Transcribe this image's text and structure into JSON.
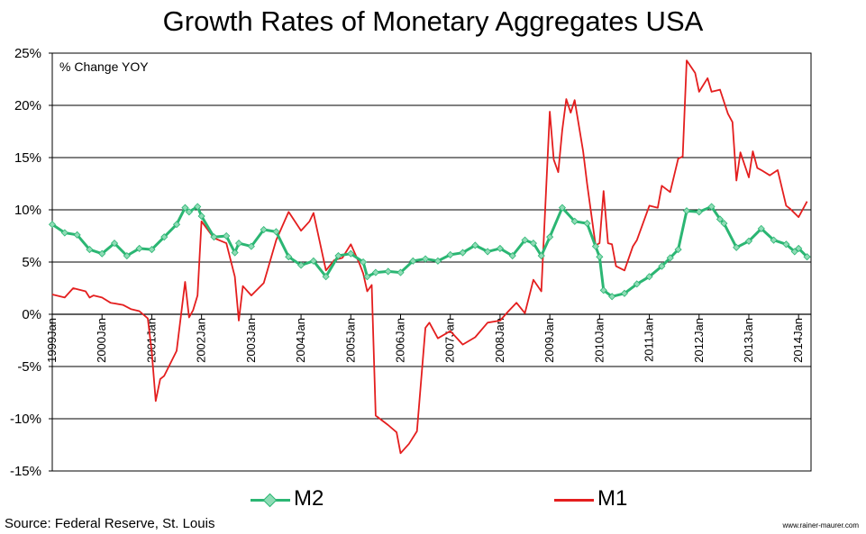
{
  "title": "Growth Rates of Monetary Aggregates  USA",
  "annotation": "% Change YOY",
  "source": "Source:  Federal Reserve,  St. Louis",
  "watermark": "www.rainer-maurer.com",
  "chart_data": {
    "type": "line",
    "title": "Growth Rates of Monetary Aggregates  USA",
    "ylim": [
      -15,
      25
    ],
    "y_ticks": [
      "25%",
      "20%",
      "15%",
      "10%",
      "5%",
      "0%",
      "-5%",
      "-10%",
      "-15%"
    ],
    "y_tick_values": [
      25,
      20,
      15,
      10,
      5,
      0,
      -5,
      -10,
      -15
    ],
    "x_tick_labels": [
      "1999Jan",
      "2000Jan",
      "2001Jan",
      "2002Jan",
      "2003Jan",
      "2004Jan",
      "2005Jan",
      "2006Jan",
      "2007Jan",
      "2008Jan",
      "2009Jan",
      "2010Jan",
      "2011Jan",
      "2012Jan",
      "2013Jan",
      "2014Jan"
    ],
    "x_tick_years": [
      1999,
      2000,
      2001,
      2002,
      2003,
      2004,
      2005,
      2006,
      2007,
      2008,
      2009,
      2010,
      2011,
      2012,
      2013,
      2014
    ],
    "xlim": [
      1999.0,
      2014.25
    ],
    "grid": "horizontal",
    "legend": "bottom",
    "series": [
      {
        "name": "M2",
        "color": "#2bb673",
        "marker": "diamond",
        "x": [
          1999.0,
          1999.25,
          1999.5,
          1999.75,
          2000.0,
          2000.25,
          2000.5,
          2000.75,
          2001.0,
          2001.25,
          2001.5,
          2001.67,
          2001.75,
          2001.92,
          2002.0,
          2002.25,
          2002.5,
          2002.67,
          2002.75,
          2003.0,
          2003.25,
          2003.5,
          2003.75,
          2004.0,
          2004.25,
          2004.5,
          2004.75,
          2005.0,
          2005.25,
          2005.33,
          2005.5,
          2005.75,
          2006.0,
          2006.25,
          2006.5,
          2006.75,
          2007.0,
          2007.25,
          2007.5,
          2007.75,
          2008.0,
          2008.25,
          2008.5,
          2008.67,
          2008.83,
          2009.0,
          2009.25,
          2009.5,
          2009.75,
          2009.92,
          2010.0,
          2010.08,
          2010.25,
          2010.5,
          2010.75,
          2011.0,
          2011.25,
          2011.42,
          2011.58,
          2011.75,
          2012.0,
          2012.25,
          2012.42,
          2012.5,
          2012.75,
          2013.0,
          2013.25,
          2013.5,
          2013.75,
          2013.92,
          2014.0,
          2014.17
        ],
        "values": [
          8.6,
          7.8,
          7.6,
          6.2,
          5.8,
          6.8,
          5.6,
          6.3,
          6.2,
          7.4,
          8.6,
          10.2,
          9.8,
          10.3,
          9.4,
          7.4,
          7.5,
          5.9,
          6.8,
          6.5,
          8.1,
          7.9,
          5.5,
          4.7,
          5.1,
          3.6,
          5.6,
          5.8,
          5.0,
          3.6,
          4.0,
          4.1,
          4.0,
          5.1,
          5.3,
          5.1,
          5.7,
          5.9,
          6.6,
          6.0,
          6.3,
          5.6,
          7.1,
          6.8,
          5.6,
          7.4,
          10.2,
          8.9,
          8.7,
          6.5,
          5.5,
          2.3,
          1.7,
          2.0,
          2.9,
          3.6,
          4.6,
          5.4,
          6.2,
          9.9,
          9.8,
          10.3,
          9.1,
          8.7,
          6.4,
          7.0,
          8.2,
          7.1,
          6.7,
          6.0,
          6.3,
          5.5
        ]
      },
      {
        "name": "M1",
        "color": "#e41e1e",
        "marker": "none",
        "x": [
          1999.0,
          1999.25,
          1999.42,
          1999.67,
          1999.75,
          1999.83,
          2000.0,
          2000.17,
          2000.42,
          2000.58,
          2000.75,
          2000.92,
          2001.0,
          2001.08,
          2001.17,
          2001.25,
          2001.5,
          2001.67,
          2001.75,
          2001.83,
          2001.92,
          2002.0,
          2002.25,
          2002.5,
          2002.67,
          2002.75,
          2002.83,
          2003.0,
          2003.25,
          2003.5,
          2003.75,
          2004.0,
          2004.17,
          2004.25,
          2004.5,
          2004.67,
          2004.83,
          2005.0,
          2005.17,
          2005.25,
          2005.33,
          2005.42,
          2005.5,
          2005.75,
          2005.92,
          2006.0,
          2006.17,
          2006.33,
          2006.5,
          2006.58,
          2006.75,
          2007.0,
          2007.25,
          2007.5,
          2007.75,
          2008.0,
          2008.17,
          2008.33,
          2008.5,
          2008.67,
          2008.83,
          2009.0,
          2009.08,
          2009.17,
          2009.25,
          2009.33,
          2009.42,
          2009.5,
          2009.67,
          2009.75,
          2009.92,
          2010.0,
          2010.08,
          2010.17,
          2010.25,
          2010.33,
          2010.5,
          2010.67,
          2010.75,
          2011.0,
          2011.17,
          2011.25,
          2011.42,
          2011.58,
          2011.67,
          2011.75,
          2011.92,
          2012.0,
          2012.17,
          2012.25,
          2012.42,
          2012.58,
          2012.67,
          2012.75,
          2012.83,
          2013.0,
          2013.08,
          2013.17,
          2013.25,
          2013.42,
          2013.58,
          2013.75,
          2013.83,
          2014.0,
          2014.17
        ],
        "values": [
          1.9,
          1.6,
          2.5,
          2.2,
          1.6,
          1.8,
          1.6,
          1.1,
          0.9,
          0.5,
          0.3,
          -0.4,
          -3.6,
          -8.3,
          -6.2,
          -5.9,
          -3.5,
          3.1,
          -0.3,
          0.4,
          1.8,
          8.9,
          7.3,
          6.8,
          3.6,
          -0.6,
          2.7,
          1.8,
          3.0,
          7.1,
          9.8,
          8.0,
          8.9,
          9.7,
          4.2,
          5.2,
          5.4,
          6.7,
          4.9,
          3.9,
          2.2,
          2.8,
          -9.7,
          -10.6,
          -11.3,
          -13.3,
          -12.4,
          -11.2,
          -1.3,
          -0.8,
          -2.3,
          -1.6,
          -2.9,
          -2.2,
          -0.8,
          -0.6,
          0.3,
          1.1,
          0.1,
          3.3,
          2.2,
          19.4,
          14.8,
          13.6,
          17.6,
          20.6,
          19.3,
          20.5,
          15.6,
          12.5,
          6.6,
          6.8,
          11.8,
          6.8,
          6.7,
          4.6,
          4.2,
          6.5,
          7.1,
          10.4,
          10.2,
          12.3,
          11.7,
          14.9,
          15.1,
          24.3,
          23.1,
          21.3,
          22.6,
          21.3,
          21.5,
          19.2,
          18.4,
          12.8,
          15.5,
          13.1,
          15.6,
          14.0,
          13.8,
          13.3,
          13.8,
          10.4,
          10.1,
          9.3,
          10.8
        ]
      }
    ]
  }
}
